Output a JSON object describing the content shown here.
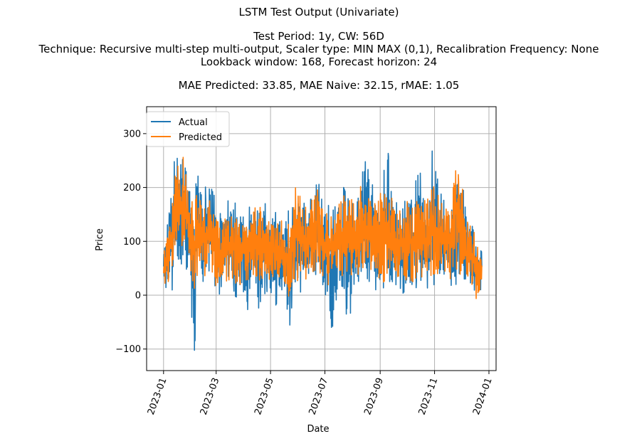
{
  "chart_data": {
    "type": "line",
    "title": "LSTM Test Output (Univariate)",
    "subtitle_lines": [
      "Test Period: 1y, CW: 56D",
      "Technique: Recursive multi-step multi-output, Scaler type: MIN MAX (0,1), Recalibration Frequency: None",
      "Lookback window: 168, Forecast horizon: 24"
    ],
    "metrics_line": "MAE Predicted: 33.85, MAE Naive: 32.15, rMAE: 1.05",
    "xlabel": "Date",
    "ylabel": "Price",
    "xlim": [
      "2022-12-13",
      "2024-01-09"
    ],
    "ylim": [
      -140,
      350
    ],
    "x_ticks": [
      "2023-01",
      "2023-03",
      "2023-05",
      "2023-07",
      "2023-09",
      "2023-11",
      "2024-01"
    ],
    "y_ticks": [
      -100,
      0,
      100,
      200,
      300
    ],
    "y_tick_labels": [
      "−100",
      "0",
      "100",
      "200",
      "300"
    ],
    "grid": true,
    "legend_position": "upper-left",
    "x_range": [
      "2023-01-01",
      "2023-12-24"
    ],
    "series": [
      {
        "name": "Actual",
        "color": "#1f77b4",
        "envelope": [
          {
            "x": "2023-01-01",
            "min": 5,
            "max": 90
          },
          {
            "x": "2023-01-05",
            "min": -5,
            "max": 135
          },
          {
            "x": "2023-01-10",
            "min": 5,
            "max": 230
          },
          {
            "x": "2023-01-15",
            "min": 40,
            "max": 260
          },
          {
            "x": "2023-01-20",
            "min": 60,
            "max": 270
          },
          {
            "x": "2023-01-25",
            "min": 50,
            "max": 265
          },
          {
            "x": "2023-01-30",
            "min": 20,
            "max": 200
          },
          {
            "x": "2023-02-04",
            "min": -120,
            "max": 225
          },
          {
            "x": "2023-02-10",
            "min": 40,
            "max": 220
          },
          {
            "x": "2023-02-16",
            "min": 20,
            "max": 200
          },
          {
            "x": "2023-02-22",
            "min": 50,
            "max": 205
          },
          {
            "x": "2023-02-28",
            "min": -5,
            "max": 180
          },
          {
            "x": "2023-03-06",
            "min": -5,
            "max": 150
          },
          {
            "x": "2023-03-12",
            "min": 10,
            "max": 190
          },
          {
            "x": "2023-03-18",
            "min": 40,
            "max": 200
          },
          {
            "x": "2023-03-24",
            "min": -25,
            "max": 160
          },
          {
            "x": "2023-03-30",
            "min": 10,
            "max": 165
          },
          {
            "x": "2023-04-05",
            "min": -30,
            "max": 150
          },
          {
            "x": "2023-04-11",
            "min": 30,
            "max": 185
          },
          {
            "x": "2023-04-17",
            "min": -50,
            "max": 190
          },
          {
            "x": "2023-04-23",
            "min": 0,
            "max": 175
          },
          {
            "x": "2023-04-29",
            "min": 10,
            "max": 160
          },
          {
            "x": "2023-05-05",
            "min": -25,
            "max": 155
          },
          {
            "x": "2023-05-11",
            "min": -5,
            "max": 150
          },
          {
            "x": "2023-05-17",
            "min": 10,
            "max": 140
          },
          {
            "x": "2023-05-23",
            "min": -90,
            "max": 165
          },
          {
            "x": "2023-05-29",
            "min": 20,
            "max": 160
          },
          {
            "x": "2023-06-04",
            "min": 5,
            "max": 180
          },
          {
            "x": "2023-06-10",
            "min": 15,
            "max": 165
          },
          {
            "x": "2023-06-16",
            "min": 5,
            "max": 180
          },
          {
            "x": "2023-06-22",
            "min": 30,
            "max": 245
          },
          {
            "x": "2023-06-28",
            "min": 0,
            "max": 170
          },
          {
            "x": "2023-07-04",
            "min": -20,
            "max": 165
          },
          {
            "x": "2023-07-10",
            "min": -75,
            "max": 175
          },
          {
            "x": "2023-07-16",
            "min": 20,
            "max": 190
          },
          {
            "x": "2023-07-22",
            "min": 15,
            "max": 200
          },
          {
            "x": "2023-07-28",
            "min": -85,
            "max": 175
          },
          {
            "x": "2023-08-03",
            "min": 10,
            "max": 185
          },
          {
            "x": "2023-08-09",
            "min": 15,
            "max": 200
          },
          {
            "x": "2023-08-15",
            "min": 10,
            "max": 290
          },
          {
            "x": "2023-08-21",
            "min": 30,
            "max": 230
          },
          {
            "x": "2023-08-27",
            "min": 10,
            "max": 185
          },
          {
            "x": "2023-09-02",
            "min": 0,
            "max": 200
          },
          {
            "x": "2023-09-08",
            "min": 10,
            "max": 300
          },
          {
            "x": "2023-09-14",
            "min": 20,
            "max": 190
          },
          {
            "x": "2023-09-20",
            "min": 0,
            "max": 180
          },
          {
            "x": "2023-09-26",
            "min": -5,
            "max": 170
          },
          {
            "x": "2023-10-02",
            "min": 10,
            "max": 180
          },
          {
            "x": "2023-10-08",
            "min": 0,
            "max": 175
          },
          {
            "x": "2023-10-14",
            "min": 25,
            "max": 250
          },
          {
            "x": "2023-10-20",
            "min": 10,
            "max": 180
          },
          {
            "x": "2023-10-26",
            "min": 15,
            "max": 190
          },
          {
            "x": "2023-11-01",
            "min": 20,
            "max": 330
          },
          {
            "x": "2023-11-07",
            "min": 20,
            "max": 190
          },
          {
            "x": "2023-11-13",
            "min": 30,
            "max": 180
          },
          {
            "x": "2023-11-19",
            "min": 10,
            "max": 170
          },
          {
            "x": "2023-11-25",
            "min": 20,
            "max": 230
          },
          {
            "x": "2023-12-01",
            "min": 30,
            "max": 220
          },
          {
            "x": "2023-12-07",
            "min": 30,
            "max": 155
          },
          {
            "x": "2023-12-13",
            "min": 20,
            "max": 140
          },
          {
            "x": "2023-12-18",
            "min": 0,
            "max": 95
          },
          {
            "x": "2023-12-24",
            "min": 5,
            "max": 80
          }
        ]
      },
      {
        "name": "Predicted",
        "color": "#ff7f0e",
        "envelope": [
          {
            "x": "2023-01-01",
            "min": 10,
            "max": 70
          },
          {
            "x": "2023-01-05",
            "min": 20,
            "max": 140
          },
          {
            "x": "2023-01-10",
            "min": 40,
            "max": 190
          },
          {
            "x": "2023-01-15",
            "min": 70,
            "max": 240
          },
          {
            "x": "2023-01-20",
            "min": 80,
            "max": 265
          },
          {
            "x": "2023-01-25",
            "min": 90,
            "max": 250
          },
          {
            "x": "2023-01-30",
            "min": 60,
            "max": 200
          },
          {
            "x": "2023-02-04",
            "min": -25,
            "max": 195
          },
          {
            "x": "2023-02-10",
            "min": 40,
            "max": 175
          },
          {
            "x": "2023-02-16",
            "min": 35,
            "max": 180
          },
          {
            "x": "2023-02-22",
            "min": 55,
            "max": 175
          },
          {
            "x": "2023-02-28",
            "min": 10,
            "max": 165
          },
          {
            "x": "2023-03-06",
            "min": 20,
            "max": 125
          },
          {
            "x": "2023-03-12",
            "min": 20,
            "max": 145
          },
          {
            "x": "2023-03-18",
            "min": 35,
            "max": 165
          },
          {
            "x": "2023-03-24",
            "min": 20,
            "max": 140
          },
          {
            "x": "2023-03-30",
            "min": 20,
            "max": 150
          },
          {
            "x": "2023-04-05",
            "min": 15,
            "max": 140
          },
          {
            "x": "2023-04-11",
            "min": 40,
            "max": 160
          },
          {
            "x": "2023-04-17",
            "min": 25,
            "max": 165
          },
          {
            "x": "2023-04-23",
            "min": 20,
            "max": 160
          },
          {
            "x": "2023-04-29",
            "min": 30,
            "max": 150
          },
          {
            "x": "2023-05-05",
            "min": 25,
            "max": 145
          },
          {
            "x": "2023-05-11",
            "min": 15,
            "max": 140
          },
          {
            "x": "2023-05-17",
            "min": 20,
            "max": 135
          },
          {
            "x": "2023-05-23",
            "min": -10,
            "max": 130
          },
          {
            "x": "2023-05-29",
            "min": 25,
            "max": 215
          },
          {
            "x": "2023-06-04",
            "min": 30,
            "max": 190
          },
          {
            "x": "2023-06-10",
            "min": 30,
            "max": 160
          },
          {
            "x": "2023-06-16",
            "min": 30,
            "max": 175
          },
          {
            "x": "2023-06-22",
            "min": 40,
            "max": 200
          },
          {
            "x": "2023-06-28",
            "min": 30,
            "max": 160
          },
          {
            "x": "2023-07-04",
            "min": 20,
            "max": 160
          },
          {
            "x": "2023-07-10",
            "min": 15,
            "max": 165
          },
          {
            "x": "2023-07-16",
            "min": 40,
            "max": 175
          },
          {
            "x": "2023-07-22",
            "min": 35,
            "max": 185
          },
          {
            "x": "2023-07-28",
            "min": 25,
            "max": 175
          },
          {
            "x": "2023-08-03",
            "min": 35,
            "max": 180
          },
          {
            "x": "2023-08-09",
            "min": 40,
            "max": 200
          },
          {
            "x": "2023-08-15",
            "min": 40,
            "max": 210
          },
          {
            "x": "2023-08-21",
            "min": 50,
            "max": 200
          },
          {
            "x": "2023-08-27",
            "min": 30,
            "max": 180
          },
          {
            "x": "2023-09-02",
            "min": 20,
            "max": 190
          },
          {
            "x": "2023-09-08",
            "min": 30,
            "max": 215
          },
          {
            "x": "2023-09-14",
            "min": 40,
            "max": 180
          },
          {
            "x": "2023-09-20",
            "min": 20,
            "max": 175
          },
          {
            "x": "2023-09-26",
            "min": 25,
            "max": 165
          },
          {
            "x": "2023-10-02",
            "min": 30,
            "max": 175
          },
          {
            "x": "2023-10-08",
            "min": 25,
            "max": 170
          },
          {
            "x": "2023-10-14",
            "min": 40,
            "max": 200
          },
          {
            "x": "2023-10-20",
            "min": 30,
            "max": 175
          },
          {
            "x": "2023-10-26",
            "min": 35,
            "max": 180
          },
          {
            "x": "2023-11-01",
            "min": 40,
            "max": 215
          },
          {
            "x": "2023-11-07",
            "min": 40,
            "max": 185
          },
          {
            "x": "2023-11-13",
            "min": 40,
            "max": 170
          },
          {
            "x": "2023-11-19",
            "min": 25,
            "max": 165
          },
          {
            "x": "2023-11-25",
            "min": 35,
            "max": 235
          },
          {
            "x": "2023-12-01",
            "min": 40,
            "max": 210
          },
          {
            "x": "2023-12-07",
            "min": 40,
            "max": 150
          },
          {
            "x": "2023-12-13",
            "min": 20,
            "max": 140
          },
          {
            "x": "2023-12-18",
            "min": -15,
            "max": 90
          },
          {
            "x": "2023-12-24",
            "min": 10,
            "max": 85
          }
        ]
      }
    ]
  }
}
